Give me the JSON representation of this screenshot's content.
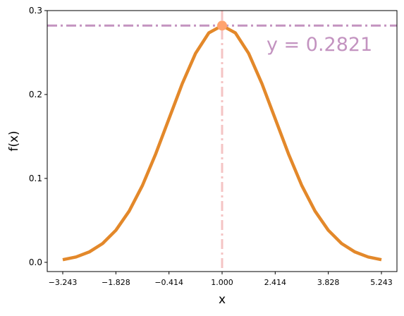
{
  "chart_data": {
    "type": "line",
    "x_label": "x",
    "y_label": "f(x)",
    "x": [
      -3.243,
      -2.889,
      -2.536,
      -2.182,
      -1.828,
      -1.475,
      -1.121,
      -0.768,
      -0.414,
      -0.061,
      0.293,
      0.646,
      1.0,
      1.354,
      1.707,
      2.061,
      2.414,
      2.768,
      3.121,
      3.475,
      3.828,
      4.182,
      4.536,
      4.889,
      5.243
    ],
    "values": [
      0.0031,
      0.0064,
      0.0124,
      0.0224,
      0.0382,
      0.061,
      0.0916,
      0.1292,
      0.1711,
      0.2129,
      0.249,
      0.2734,
      0.2821,
      0.2734,
      0.249,
      0.2129,
      0.1711,
      0.1292,
      0.0916,
      0.061,
      0.0382,
      0.0224,
      0.0124,
      0.0064,
      0.0031
    ],
    "color": "#e3882a",
    "xlim": [
      -3.656,
      5.656
    ],
    "ylim": [
      -0.011,
      0.3
    ],
    "xticks": [
      {
        "value": -3.243,
        "label": "−3.243"
      },
      {
        "value": -1.828,
        "label": "−1.828"
      },
      {
        "value": -0.414,
        "label": "−0.414"
      },
      {
        "value": 1.0,
        "label": "1.000"
      },
      2.414,
      3.828,
      5.243
    ],
    "yticks": [
      {
        "value": 0,
        "label": "0.0"
      },
      0.1,
      0.2,
      0.3
    ],
    "hline": {
      "value": 0.2821,
      "color": "#c393c0"
    },
    "vline": {
      "value": 1.0,
      "color": "#f4c4c4"
    },
    "peak": {
      "x": 1.0,
      "y": 0.2821,
      "color": "#ffa36e"
    },
    "annotation": "y = 0.2821"
  }
}
